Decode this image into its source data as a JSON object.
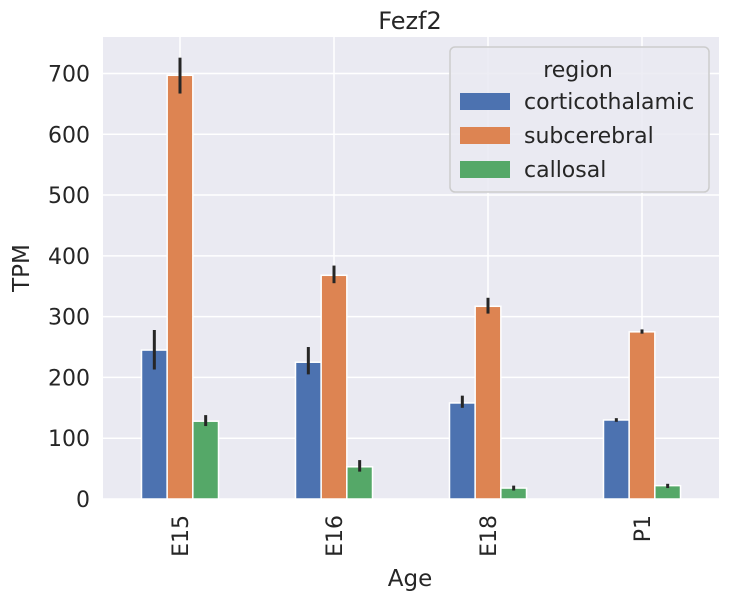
{
  "chart_data": {
    "type": "bar",
    "title": "Fezf2",
    "xlabel": "Age",
    "ylabel": "TPM",
    "ylim": [
      0,
      760
    ],
    "yticks": [
      0,
      100,
      200,
      300,
      400,
      500,
      600,
      700
    ],
    "grid": true,
    "categories": [
      "E15",
      "E16",
      "E18",
      "P1"
    ],
    "legend": {
      "title": "region",
      "placement": "top-right"
    },
    "series": [
      {
        "name": "corticothalamic",
        "color": "#4c72b0",
        "values": [
          245,
          225,
          158,
          130
        ],
        "err_low": [
          213,
          205,
          150,
          127
        ],
        "err_high": [
          278,
          250,
          170,
          133
        ]
      },
      {
        "name": "subcerebral",
        "color": "#dd8452",
        "values": [
          697,
          368,
          317,
          275
        ],
        "err_low": [
          667,
          355,
          305,
          272
        ],
        "err_high": [
          726,
          384,
          331,
          279
        ]
      },
      {
        "name": "callosal",
        "color": "#55a868",
        "values": [
          128,
          53,
          18,
          22
        ],
        "err_low": [
          120,
          45,
          14,
          18
        ],
        "err_high": [
          138,
          64,
          22,
          25
        ]
      }
    ]
  }
}
